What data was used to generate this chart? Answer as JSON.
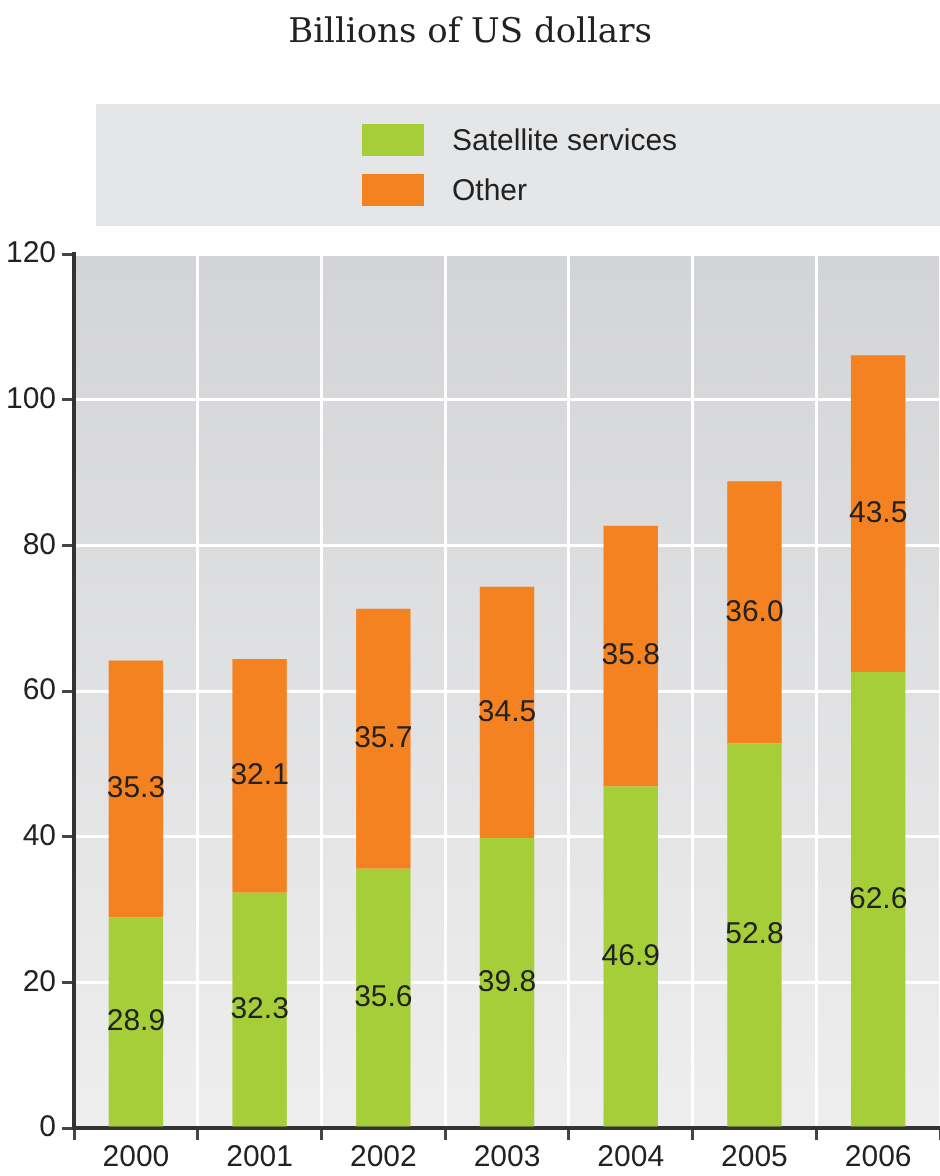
{
  "chart_data": {
    "type": "bar",
    "subtitle": "Billions of US dollars",
    "categories": [
      "2000",
      "2001",
      "2002",
      "2003",
      "2004",
      "2005",
      "2006"
    ],
    "series": [
      {
        "name": "Satellite services",
        "color": "#a6ce39",
        "values": [
          28.9,
          32.3,
          35.6,
          39.8,
          46.9,
          52.8,
          62.6
        ],
        "value_labels": [
          "28.9",
          "32.3",
          "35.6",
          "39.8",
          "46.9",
          "52.8",
          "62.6"
        ]
      },
      {
        "name": "Other",
        "color": "#f58220",
        "values": [
          35.3,
          32.1,
          35.7,
          34.5,
          35.8,
          36.0,
          43.5
        ],
        "value_labels": [
          "35.3",
          "32.1",
          "35.7",
          "34.5",
          "35.8",
          "36.0",
          "43.5"
        ]
      }
    ],
    "stacked": true,
    "ylim": [
      0,
      120
    ],
    "yticks": [
      0,
      20,
      40,
      60,
      80,
      100,
      120
    ],
    "grid": true,
    "legend": "top"
  }
}
